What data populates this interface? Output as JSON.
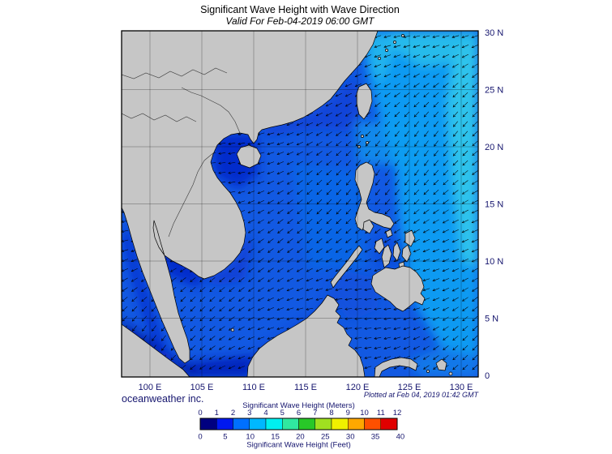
{
  "header": {
    "title": "Significant Wave Height with Wave Direction",
    "subtitle": "Valid For Feb-04-2019 06:00 GMT"
  },
  "map": {
    "lon_tick_labels": [
      "100 E",
      "105 E",
      "110 E",
      "115 E",
      "120 E",
      "125 E",
      "130 E"
    ],
    "lat_tick_labels": [
      "30 N",
      "25 N",
      "20 N",
      "15 N",
      "10 N",
      "5 N",
      "0"
    ],
    "land_color": "#c6c6c6",
    "ocean_base_color": "#1259e2",
    "arrow_color": "#000000"
  },
  "footer": {
    "brand": "oceanweather inc.",
    "plotted_note": "Plotted at Feb 04, 2019 01:42 GMT"
  },
  "legend": {
    "title_meters": "Significant Wave Height (Meters)",
    "title_feet": "Significant Wave Height (Feet)",
    "meter_tick_labels": [
      "0",
      "1",
      "2",
      "3",
      "4",
      "5",
      "6",
      "7",
      "8",
      "9",
      "10",
      "11",
      "12"
    ],
    "feet_tick_labels": [
      "0",
      "5",
      "10",
      "15",
      "20",
      "25",
      "30",
      "35",
      "40"
    ],
    "segment_colors": [
      "#000080",
      "#0018f0",
      "#0070ff",
      "#00b8ff",
      "#00f0f0",
      "#30e8a0",
      "#28c828",
      "#a0e020",
      "#f0f000",
      "#ffa800",
      "#ff5000",
      "#e00000"
    ]
  }
}
